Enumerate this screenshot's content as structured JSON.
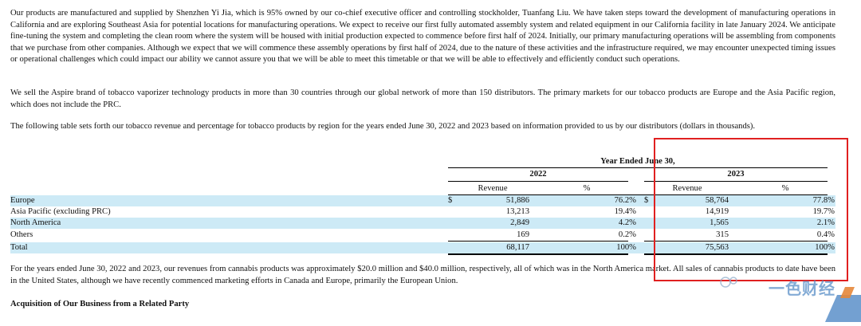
{
  "paragraphs": {
    "p1": "Our products are manufactured and supplied by Shenzhen Yi Jia, which is 95% owned by our co-chief executive officer and controlling stockholder, Tuanfang Liu. We have taken steps toward the development of manufacturing operations in California and are exploring Southeast Asia for potential locations for manufacturing operations. We expect to receive our first fully automated assembly system and related equipment in our California facility in late January 2024. We anticipate fine-tuning the system and completing the clean room where the system will be housed with initial production expected to commence before first half of 2024. Initially, our primary manufacturing operations will be assembling from components that we purchase from other companies. Although we expect that we will commence these assembly operations by first half of 2024, due to the nature of these activities and the infrastructure required, we may encounter unexpected timing issues or operational challenges which could impact our ability we cannot assure you that we will be able to meet this timetable or that we will be able to effectively and efficiently conduct such operations.",
    "p2": "We sell the Aspire brand of tobacco vaporizer technology products in more than 30 countries through our global network of more than 150 distributors. The primary markets for our tobacco products are Europe and the Asia Pacific region, which does not include the PRC.",
    "p3": "The following table sets forth our tobacco revenue and percentage for tobacco products by region for the years ended June 30, 2022 and 2023 based on information provided to us by our distributors (dollars in thousands).",
    "p4": "For the years ended June 30, 2022 and 2023, our revenues from cannabis products was approximately $20.0 million and $40.0 million, respectively, all of which was in the North America market. All sales of cannabis products to date have been in the United States, although we have recently commenced marketing efforts in Canada and Europe, primarily the European Union."
  },
  "section_heading": "Acquisition of Our Business from a Related Party",
  "table": {
    "period_header": "Year Ended June 30,",
    "years": [
      "2022",
      "2023"
    ],
    "col_revenue": "Revenue",
    "col_pct": "%",
    "currency": "$",
    "rows": [
      {
        "region": "Europe",
        "rev2022": "51,886",
        "pct2022": "76.2%",
        "rev2023": "58,764",
        "pct2023": "77.8%"
      },
      {
        "region": "Asia Pacific (excluding PRC)",
        "rev2022": "13,213",
        "pct2022": "19.4%",
        "rev2023": "14,919",
        "pct2023": "19.7%"
      },
      {
        "region": "North America",
        "rev2022": "2,849",
        "pct2022": "4.2%",
        "rev2023": "1,565",
        "pct2023": "2.1%"
      },
      {
        "region": "Others",
        "rev2022": "169",
        "pct2022": "0.2%",
        "rev2023": "315",
        "pct2023": "0.4%"
      },
      {
        "region": "Total",
        "rev2022": "68,117",
        "pct2022": "100%",
        "rev2023": "75,563",
        "pct2023": "100%"
      }
    ]
  },
  "watermark": "一色财经",
  "colors": {
    "band": "#cdeaf6",
    "highlight_box": "#e02020"
  }
}
